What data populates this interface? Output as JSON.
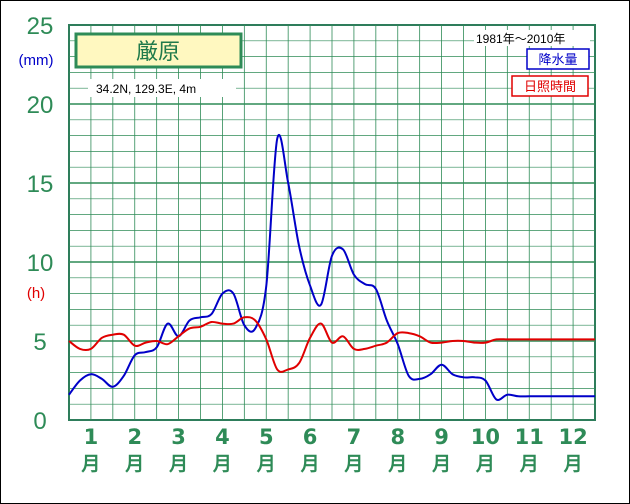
{
  "chart_data": {
    "type": "line",
    "station": "厳原",
    "location": "34.2N,  129.3E,  4m",
    "period": "1981年〜2010年",
    "y_unit_left": "(mm)",
    "y_unit_left2": "(h)",
    "ylim": [
      0,
      25
    ],
    "yticks": [
      "0",
      "5",
      "10",
      "15",
      "20",
      "25"
    ],
    "month_numbers": [
      "1",
      "2",
      "3",
      "4",
      "5",
      "6",
      "7",
      "8",
      "9",
      "10",
      "11",
      "12"
    ],
    "month_suffix": "月",
    "x": [
      0.0,
      0.25,
      0.5,
      0.75,
      1.0,
      1.25,
      1.5,
      1.75,
      2.0,
      2.25,
      2.5,
      2.75,
      3.0,
      3.25,
      3.5,
      3.75,
      4.0,
      4.25,
      4.5,
      4.75,
      5.0,
      5.25,
      5.5,
      5.75,
      6.0,
      6.25,
      6.5,
      6.75,
      7.0,
      7.25,
      7.5,
      7.75,
      8.0,
      8.25,
      8.5,
      8.75,
      9.0,
      9.25,
      9.5,
      9.75,
      10.0,
      10.25,
      10.5,
      10.75,
      11.0,
      11.25,
      11.5,
      11.75,
      12.0
    ],
    "series": [
      {
        "name": "降水量",
        "color": "#0000c8",
        "values": [
          1.6,
          2.5,
          2.9,
          2.6,
          2.1,
          2.8,
          4.1,
          4.3,
          4.6,
          6.1,
          5.3,
          6.3,
          6.5,
          6.7,
          8.0,
          8.0,
          6.0,
          5.8,
          8.5,
          17.8,
          15.0,
          11.0,
          8.5,
          7.3,
          10.4,
          10.8,
          9.2,
          8.6,
          8.3,
          6.3,
          4.8,
          2.8,
          2.6,
          2.9,
          3.5,
          2.9,
          2.7,
          2.7,
          2.5,
          1.3,
          1.6,
          1.5,
          1.5,
          1.5,
          1.5,
          1.5,
          1.5,
          1.5,
          1.5
        ]
      },
      {
        "name": "日照時間",
        "color": "#e00000",
        "values": [
          5.0,
          4.5,
          4.5,
          5.2,
          5.4,
          5.4,
          4.7,
          4.9,
          5.0,
          4.8,
          5.3,
          5.8,
          5.9,
          6.2,
          6.1,
          6.1,
          6.5,
          6.3,
          5.1,
          3.2,
          3.2,
          3.6,
          5.2,
          6.1,
          4.9,
          5.3,
          4.5,
          4.5,
          4.7,
          4.9,
          5.5,
          5.5,
          5.3,
          4.9,
          4.9,
          5.0,
          5.0,
          4.9,
          4.9,
          5.1,
          5.1,
          5.1,
          5.1,
          5.1,
          5.1,
          5.1,
          5.1,
          5.1,
          5.1
        ]
      }
    ],
    "grid": true,
    "legend_position": "top-right"
  }
}
